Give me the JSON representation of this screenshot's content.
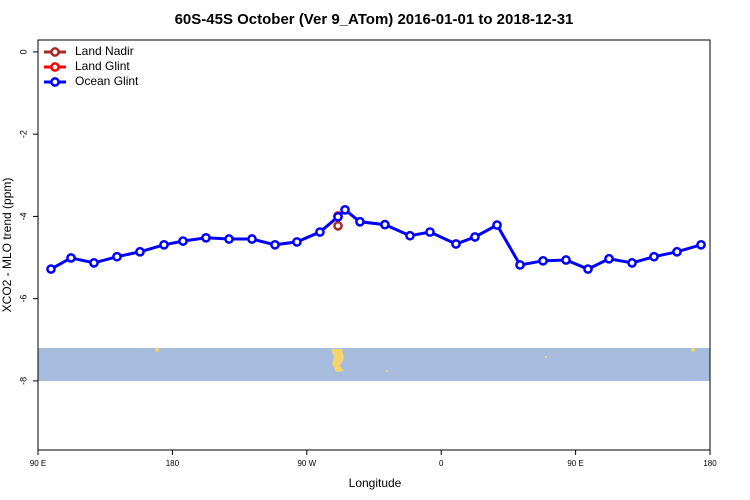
{
  "chart_data": {
    "type": "line",
    "title": "60S-45S October (Ver 9_ATom)   2016-01-01 to 2018-12-31",
    "x_label": "Longitude",
    "y_label": "XCO2 - MLO trend (ppm)",
    "xlim": [
      -270,
      180
    ],
    "ylim": [
      -9.68,
      0.29
    ],
    "xticks": [
      {
        "value": -270,
        "label": "90 E"
      },
      {
        "value": -180,
        "label": "180"
      },
      {
        "value": -90,
        "label": "90 W"
      },
      0,
      {
        "value": 90,
        "label": "90 E"
      },
      180
    ],
    "yticks": [
      0,
      -2,
      -4,
      -6,
      -8
    ],
    "legend": "top-left",
    "series": [
      {
        "name": "Land Nadir",
        "color": "#a52a2a",
        "x": [
          -69.1
        ],
        "values": [
          -4.23
        ]
      },
      {
        "name": "Land Glint",
        "color": "#ff0000",
        "x": [
          -69.1
        ],
        "values": [
          -3.99
        ]
      },
      {
        "name": "Ocean Glint",
        "color": "#0000ff",
        "x": [
          -261.3,
          -247.9,
          -232.5,
          -217.1,
          -201.7,
          -185.6,
          -172.9,
          -157.5,
          -142.1,
          -126.7,
          -111.3,
          -96.6,
          -81.2,
          -69.1,
          -64.4,
          -54.4,
          -37.7,
          -20.9,
          -7.5,
          9.9,
          22.6,
          37.4,
          52.8,
          68.2,
          83.6,
          98.3,
          112.4,
          127.8,
          142.5,
          157.9,
          174.0
        ],
        "values": [
          -5.28,
          -5.01,
          -5.13,
          -4.98,
          -4.86,
          -4.69,
          -4.6,
          -4.52,
          -4.55,
          -4.55,
          -4.69,
          -4.62,
          -4.38,
          -4.01,
          -3.84,
          -4.13,
          -4.2,
          -4.47,
          -4.38,
          -4.67,
          -4.5,
          -4.21,
          -5.18,
          -5.08,
          -5.06,
          -5.28,
          -5.03,
          -5.13,
          -4.98,
          -4.86,
          -4.69
        ]
      }
    ]
  }
}
